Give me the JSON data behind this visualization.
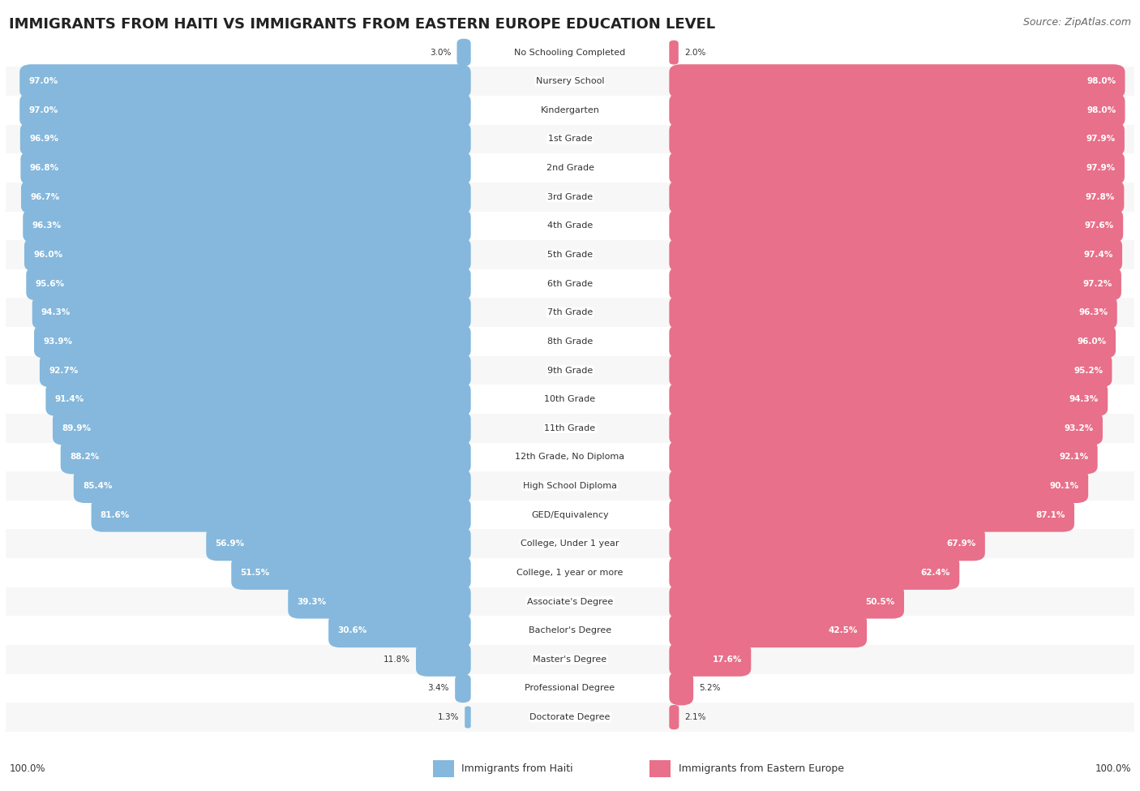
{
  "title": "IMMIGRANTS FROM HAITI VS IMMIGRANTS FROM EASTERN EUROPE EDUCATION LEVEL",
  "source": "Source: ZipAtlas.com",
  "categories": [
    "No Schooling Completed",
    "Nursery School",
    "Kindergarten",
    "1st Grade",
    "2nd Grade",
    "3rd Grade",
    "4th Grade",
    "5th Grade",
    "6th Grade",
    "7th Grade",
    "8th Grade",
    "9th Grade",
    "10th Grade",
    "11th Grade",
    "12th Grade, No Diploma",
    "High School Diploma",
    "GED/Equivalency",
    "College, Under 1 year",
    "College, 1 year or more",
    "Associate's Degree",
    "Bachelor's Degree",
    "Master's Degree",
    "Professional Degree",
    "Doctorate Degree"
  ],
  "haiti_values": [
    3.0,
    97.0,
    97.0,
    96.9,
    96.8,
    96.7,
    96.3,
    96.0,
    95.6,
    94.3,
    93.9,
    92.7,
    91.4,
    89.9,
    88.2,
    85.4,
    81.6,
    56.9,
    51.5,
    39.3,
    30.6,
    11.8,
    3.4,
    1.3
  ],
  "eastern_values": [
    2.0,
    98.0,
    98.0,
    97.9,
    97.9,
    97.8,
    97.6,
    97.4,
    97.2,
    96.3,
    96.0,
    95.2,
    94.3,
    93.2,
    92.1,
    90.1,
    87.1,
    67.9,
    62.4,
    50.5,
    42.5,
    17.6,
    5.2,
    2.1
  ],
  "haiti_color": "#85B8DC",
  "eastern_color": "#E8708A",
  "row_bg_odd": "#F7F7F7",
  "row_bg_even": "#FFFFFF",
  "label_haiti": "Immigrants from Haiti",
  "label_eastern": "Immigrants from Eastern Europe",
  "title_fontsize": 13,
  "source_fontsize": 9,
  "label_fontsize": 8,
  "value_fontsize": 7.5
}
